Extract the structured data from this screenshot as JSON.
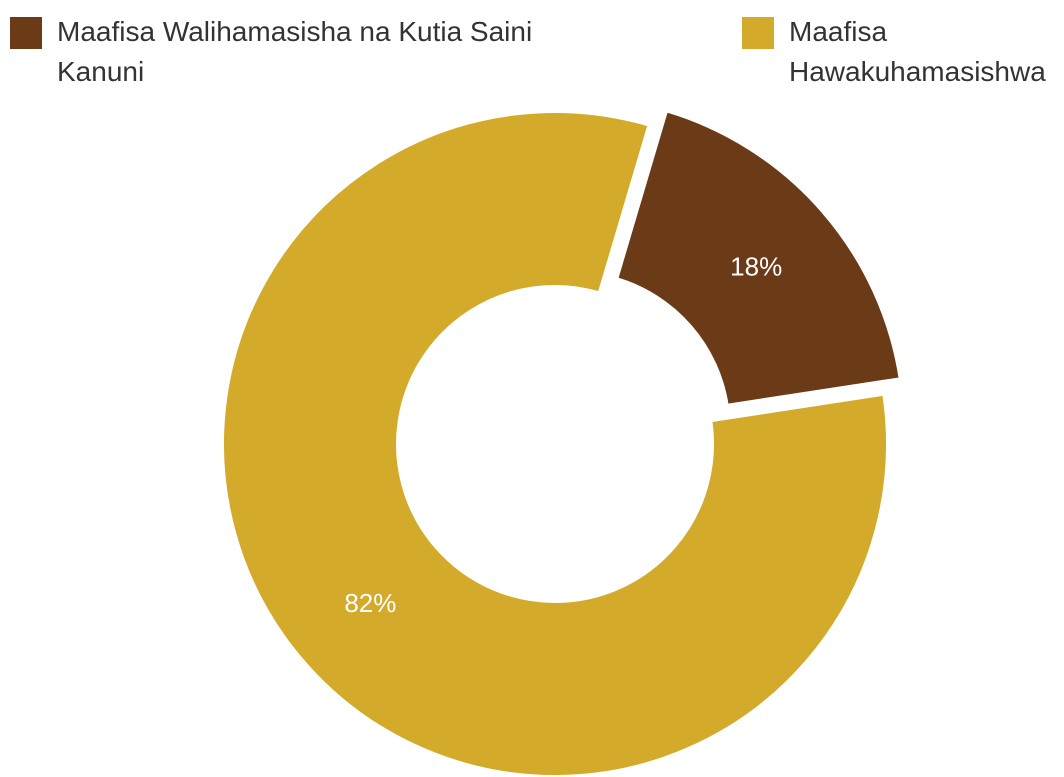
{
  "chart_data": {
    "type": "donut",
    "categories": [
      "Maafisa Walihamasisha na Kutia Saini Kanuni",
      "Maafisa Hawakuhamasishwa"
    ],
    "values": [
      18,
      82
    ],
    "value_labels": [
      "18%",
      "82%"
    ],
    "colors": [
      "#6b3a16",
      "#d3aa2a"
    ]
  }
}
